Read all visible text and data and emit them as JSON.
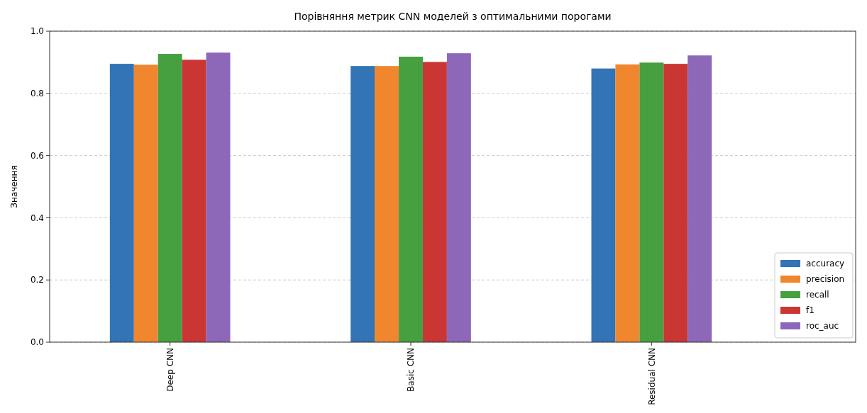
{
  "chart_data": {
    "type": "bar",
    "title": "Порівняння метрик CNN моделей з оптимальними порогами",
    "ylabel": "Значення",
    "categories": [
      "Deep CNN",
      "Basic CNN",
      "Residual CNN"
    ],
    "series": [
      {
        "name": "accuracy",
        "color": "#3274b5",
        "values": [
          0.895,
          0.888,
          0.88
        ]
      },
      {
        "name": "precision",
        "color": "#f0862e",
        "values": [
          0.892,
          0.888,
          0.893
        ]
      },
      {
        "name": "recall",
        "color": "#46a03f",
        "values": [
          0.927,
          0.918,
          0.899
        ]
      },
      {
        "name": "f1",
        "color": "#c93634",
        "values": [
          0.908,
          0.901,
          0.895
        ]
      },
      {
        "name": "roc_auc",
        "color": "#8d68b9",
        "values": [
          0.931,
          0.929,
          0.922
        ]
      }
    ],
    "ylim": [
      0,
      1
    ],
    "yticks": [
      {
        "value": 0,
        "label": "0.0"
      },
      {
        "value": 0.2,
        "label": "0.2"
      },
      {
        "value": 0.4,
        "label": "0.4"
      },
      {
        "value": 0.6,
        "label": "0.6"
      },
      {
        "value": 0.8,
        "label": "0.8"
      },
      {
        "value": 1,
        "label": "1.0"
      }
    ],
    "grid": "y",
    "legend": "bottom right"
  }
}
